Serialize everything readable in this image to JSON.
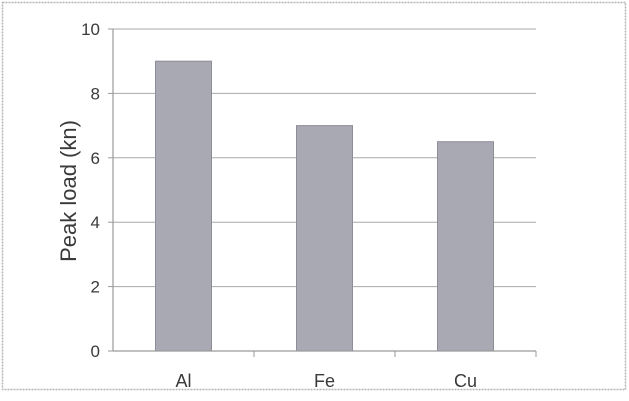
{
  "chart_data": {
    "type": "bar",
    "categories": [
      "Al",
      "Fe",
      "Cu"
    ],
    "values": [
      9,
      7,
      6.5
    ],
    "title": "",
    "xlabel": "",
    "ylabel": "Peak load (kn)",
    "ylim": [
      0,
      10
    ],
    "yticks": [
      "0",
      "2",
      "4",
      "6",
      "8",
      "10"
    ],
    "grid": true,
    "legend": "none",
    "bar_color": "#a9a9b3",
    "bar_edge_color": "#8e8e99",
    "grid_color": "#a8a8a8",
    "axis_color": "#9a9a9a",
    "frame_color": "#b4b4b4"
  }
}
